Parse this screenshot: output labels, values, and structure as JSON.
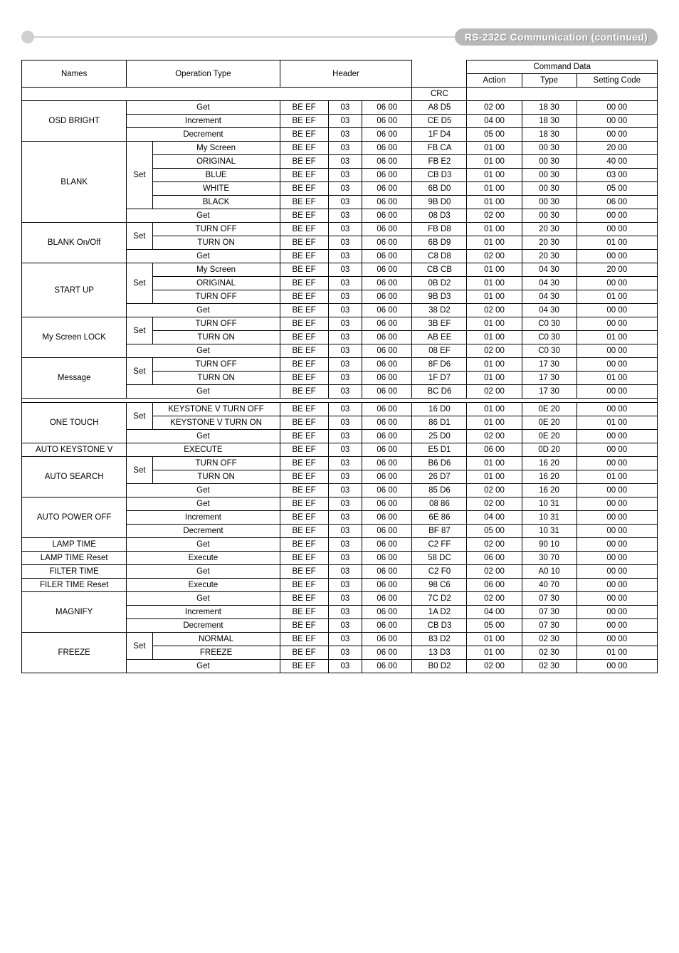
{
  "page_title": "RS-232C Communication (continued)",
  "headers": {
    "names": "Names",
    "operation_type": "Operation Type",
    "header": "Header",
    "crc": "CRC",
    "command_data": "Command Data",
    "action": "Action",
    "type": "Type",
    "setting_code": "Setting Code"
  },
  "groups": [
    {
      "name": "OSD BRIGHT",
      "rows": [
        {
          "op_set": "",
          "op": "Get",
          "h1": "BE  EF",
          "h2": "03",
          "h3": "06  00",
          "crc": "A8  D5",
          "act": "02  00",
          "type": "18  30",
          "set": "00  00"
        },
        {
          "op_set": "",
          "op": "Increment",
          "h1": "BE  EF",
          "h2": "03",
          "h3": "06  00",
          "crc": "CE  D5",
          "act": "04  00",
          "type": "18  30",
          "set": "00  00"
        },
        {
          "op_set": "",
          "op": "Decrement",
          "h1": "BE  EF",
          "h2": "03",
          "h3": "06  00",
          "crc": "1F  D4",
          "act": "05  00",
          "type": "18  30",
          "set": "00  00"
        }
      ]
    },
    {
      "name": "BLANK",
      "rows": [
        {
          "op_set": "Set",
          "op": "My Screen",
          "h1": "BE  EF",
          "h2": "03",
          "h3": "06  00",
          "crc": "FB  CA",
          "act": "01  00",
          "type": "00  30",
          "set": "20  00"
        },
        {
          "op_set": "",
          "op": "ORIGINAL",
          "h1": "BE  EF",
          "h2": "03",
          "h3": "06  00",
          "crc": "FB  E2",
          "act": "01  00",
          "type": "00  30",
          "set": "40  00"
        },
        {
          "op_set": "",
          "op": "BLUE",
          "h1": "BE  EF",
          "h2": "03",
          "h3": "06  00",
          "crc": "CB  D3",
          "act": "01  00",
          "type": "00  30",
          "set": "03  00"
        },
        {
          "op_set": "",
          "op": "WHITE",
          "h1": "BE  EF",
          "h2": "03",
          "h3": "06  00",
          "crc": "6B  D0",
          "act": "01  00",
          "type": "00  30",
          "set": "05  00"
        },
        {
          "op_set": "",
          "op": "BLACK",
          "h1": "BE  EF",
          "h2": "03",
          "h3": "06  00",
          "crc": "9B  D0",
          "act": "01  00",
          "type": "00  30",
          "set": "06  00"
        },
        {
          "op_set": "",
          "op": "Get",
          "h1": "BE  EF",
          "h2": "03",
          "h3": "06  00",
          "crc": "08  D3",
          "act": "02  00",
          "type": "00  30",
          "set": "00  00",
          "span_op": true
        }
      ]
    },
    {
      "name": "BLANK On/Off",
      "rows": [
        {
          "op_set": "Set",
          "op": "TURN OFF",
          "h1": "BE  EF",
          "h2": "03",
          "h3": "06  00",
          "crc": "FB  D8",
          "act": "01  00",
          "type": "20  30",
          "set": "00  00"
        },
        {
          "op_set": "",
          "op": "TURN ON",
          "h1": "BE  EF",
          "h2": "03",
          "h3": "06  00",
          "crc": "6B  D9",
          "act": "01  00",
          "type": "20  30",
          "set": "01  00"
        },
        {
          "op_set": "",
          "op": "Get",
          "h1": "BE  EF",
          "h2": "03",
          "h3": "06  00",
          "crc": "C8  D8",
          "act": "02  00",
          "type": "20  30",
          "set": "00  00",
          "span_op": true
        }
      ]
    },
    {
      "name": "START UP",
      "rows": [
        {
          "op_set": "Set",
          "op": "My Screen",
          "h1": "BE  EF",
          "h2": "03",
          "h3": "06  00",
          "crc": "CB  CB",
          "act": "01  00",
          "type": "04  30",
          "set": "20  00"
        },
        {
          "op_set": "",
          "op": "ORIGINAL",
          "h1": "BE  EF",
          "h2": "03",
          "h3": "06  00",
          "crc": "0B  D2",
          "act": "01  00",
          "type": "04  30",
          "set": "00  00"
        },
        {
          "op_set": "",
          "op": "TURN OFF",
          "h1": "BE  EF",
          "h2": "03",
          "h3": "06  00",
          "crc": "9B  D3",
          "act": "01  00",
          "type": "04  30",
          "set": "01  00"
        },
        {
          "op_set": "",
          "op": "Get",
          "h1": "BE  EF",
          "h2": "03",
          "h3": "06  00",
          "crc": "38  D2",
          "act": "02  00",
          "type": "04  30",
          "set": "00  00",
          "span_op": true
        }
      ]
    },
    {
      "name": "My Screen LOCK",
      "rows": [
        {
          "op_set": "Set",
          "op": "TURN OFF",
          "h1": "BE  EF",
          "h2": "03",
          "h3": "06  00",
          "crc": "3B  EF",
          "act": "01  00",
          "type": "C0  30",
          "set": "00  00"
        },
        {
          "op_set": "",
          "op": "TURN ON",
          "h1": "BE  EF",
          "h2": "03",
          "h3": "06  00",
          "crc": "AB  EE",
          "act": "01  00",
          "type": "C0  30",
          "set": "01  00"
        },
        {
          "op_set": "",
          "op": "Get",
          "h1": "BE  EF",
          "h2": "03",
          "h3": "06  00",
          "crc": "08  EF",
          "act": "02  00",
          "type": "C0  30",
          "set": "00  00",
          "span_op": true
        }
      ]
    },
    {
      "name": "Message",
      "rows": [
        {
          "op_set": "Set",
          "op": "TURN OFF",
          "h1": "BE  EF",
          "h2": "03",
          "h3": "06  00",
          "crc": "8F  D6",
          "act": "01  00",
          "type": "17  30",
          "set": "00  00"
        },
        {
          "op_set": "",
          "op": "TURN ON",
          "h1": "BE  EF",
          "h2": "03",
          "h3": "06  00",
          "crc": "1F  D7",
          "act": "01  00",
          "type": "17  30",
          "set": "01  00"
        },
        {
          "op_set": "",
          "op": "Get",
          "h1": "BE  EF",
          "h2": "03",
          "h3": "06  00",
          "crc": "BC  D6",
          "act": "02  00",
          "type": "17  30",
          "set": "00  00",
          "span_op": true
        }
      ],
      "gap_after": true
    },
    {
      "name": "ONE TOUCH",
      "rows": [
        {
          "op_set": "Set",
          "op": "KEYSTONE V  TURN OFF",
          "h1": "BE  EF",
          "h2": "03",
          "h3": "06  00",
          "crc": "16  D0",
          "act": "01  00",
          "type": "0E  20",
          "set": "00  00"
        },
        {
          "op_set": "",
          "op": "KEYSTONE V  TURN ON",
          "h1": "BE  EF",
          "h2": "03",
          "h3": "06  00",
          "crc": "86  D1",
          "act": "01  00",
          "type": "0E  20",
          "set": "01  00"
        },
        {
          "op_set": "",
          "op": "Get",
          "h1": "BE  EF",
          "h2": "03",
          "h3": "06  00",
          "crc": "25  D0",
          "act": "02  00",
          "type": "0E  20",
          "set": "00  00",
          "span_op": true
        }
      ]
    },
    {
      "name": "AUTO KEYSTONE V",
      "rows": [
        {
          "op_set": "",
          "op": "EXECUTE",
          "h1": "BE EF",
          "h2": "03",
          "h3": "06  00",
          "crc": "E5  D1",
          "act": "06  00",
          "type": "0D  20",
          "set": "00  00"
        }
      ]
    },
    {
      "name": "AUTO SEARCH",
      "rows": [
        {
          "op_set": "Set",
          "op": "TURN OFF",
          "h1": "BE  EF",
          "h2": "03",
          "h3": "06  00",
          "crc": "B6  D6",
          "act": "01  00",
          "type": "16  20",
          "set": "00  00"
        },
        {
          "op_set": "",
          "op": "TURN ON",
          "h1": "BE  EF",
          "h2": "03",
          "h3": "06  00",
          "crc": "26  D7",
          "act": "01  00",
          "type": "16  20",
          "set": "01  00"
        },
        {
          "op_set": "",
          "op": "Get",
          "h1": "BE  EF",
          "h2": "03",
          "h3": "06  00",
          "crc": "85  D6",
          "act": "02  00",
          "type": "16  20",
          "set": "00  00",
          "span_op": true
        }
      ]
    },
    {
      "name": "AUTO POWER OFF",
      "rows": [
        {
          "op_set": "",
          "op": "Get",
          "h1": "BE  EF",
          "h2": "03",
          "h3": "06  00",
          "crc": "08  86",
          "act": "02  00",
          "type": "10  31",
          "set": "00  00"
        },
        {
          "op_set": "",
          "op": "Increment",
          "h1": "BE  EF",
          "h2": "03",
          "h3": "06  00",
          "crc": "6E  86",
          "act": "04  00",
          "type": "10  31",
          "set": "00  00"
        },
        {
          "op_set": "",
          "op": "Decrement",
          "h1": "BE  EF",
          "h2": "03",
          "h3": "06  00",
          "crc": "BF  87",
          "act": "05  00",
          "type": "10  31",
          "set": "00  00"
        }
      ]
    },
    {
      "name": "LAMP TIME",
      "rows": [
        {
          "op_set": "",
          "op": "Get",
          "h1": "BE  EF",
          "h2": "03",
          "h3": "06  00",
          "crc": "C2  FF",
          "act": "02  00",
          "type": "90  10",
          "set": "00  00"
        }
      ]
    },
    {
      "name": "LAMP TIME Reset",
      "rows": [
        {
          "op_set": "",
          "op": "Execute",
          "h1": "BE  EF",
          "h2": "03",
          "h3": "06  00",
          "crc": "58  DC",
          "act": "06  00",
          "type": "30  70",
          "set": "00  00"
        }
      ]
    },
    {
      "name": "FILTER TIME",
      "rows": [
        {
          "op_set": "",
          "op": "Get",
          "h1": "BE  EF",
          "h2": "03",
          "h3": "06  00",
          "crc": "C2  F0",
          "act": "02  00",
          "type": "A0  10",
          "set": "00  00"
        }
      ]
    },
    {
      "name": "FILER TIME Reset",
      "rows": [
        {
          "op_set": "",
          "op": "Execute",
          "h1": "BE  EF",
          "h2": "03",
          "h3": "06  00",
          "crc": "98  C6",
          "act": "06  00",
          "type": "40  70",
          "set": "00  00"
        }
      ]
    },
    {
      "name": "MAGNIFY",
      "rows": [
        {
          "op_set": "",
          "op": "Get",
          "h1": "BE  EF",
          "h2": "03",
          "h3": "06  00",
          "crc": "7C  D2",
          "act": "02  00",
          "type": "07  30",
          "set": "00  00"
        },
        {
          "op_set": "",
          "op": "Increment",
          "h1": "BE  EF",
          "h2": "03",
          "h3": "06  00",
          "crc": "1A  D2",
          "act": "04  00",
          "type": "07  30",
          "set": "00  00"
        },
        {
          "op_set": "",
          "op": "Decrement",
          "h1": "BE  EF",
          "h2": "03",
          "h3": "06  00",
          "crc": "CB  D3",
          "act": "05  00",
          "type": "07  30",
          "set": "00  00"
        }
      ]
    },
    {
      "name": "FREEZE",
      "rows": [
        {
          "op_set": "Set",
          "op": "NORMAL",
          "h1": "BE  EF",
          "h2": "03",
          "h3": "06  00",
          "crc": "83  D2",
          "act": "01  00",
          "type": "02  30",
          "set": "00  00"
        },
        {
          "op_set": "",
          "op": "FREEZE",
          "h1": "BE  EF",
          "h2": "03",
          "h3": "06  00",
          "crc": "13  D3",
          "act": "01  00",
          "type": "02  30",
          "set": "01  00"
        },
        {
          "op_set": "",
          "op": "Get",
          "h1": "BE  EF",
          "h2": "03",
          "h3": "06  00",
          "crc": "B0  D2",
          "act": "02  00",
          "type": "02  30",
          "set": "00  00",
          "span_op": true
        }
      ]
    }
  ]
}
